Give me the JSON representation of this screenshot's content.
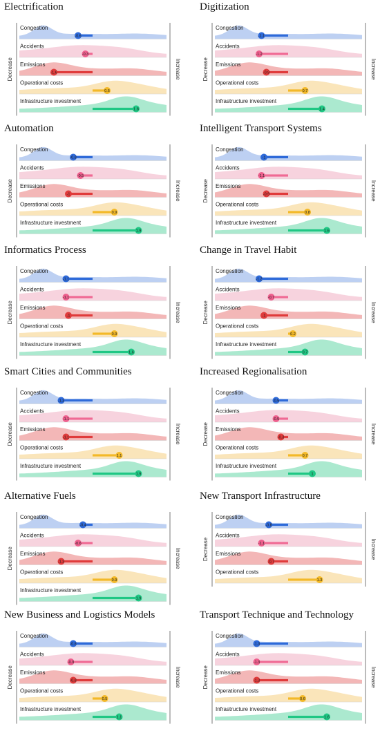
{
  "side_labels": {
    "left": "Decrease",
    "right": "Increase"
  },
  "colors": {
    "Congestion": {
      "fill": "#b9cdf1",
      "bar": "#2e6ad9",
      "dot": "#2e6ad9"
    },
    "Accidents": {
      "fill": "#f7d1dc",
      "bar": "#f06a94",
      "dot": "#ee5f8d"
    },
    "Emissions": {
      "fill": "#f2b3b3",
      "bar": "#e03b3b",
      "dot": "#e03b3b"
    },
    "Operational costs": {
      "fill": "#fae4b6",
      "bar": "#f3b928",
      "dot": "#f3b928"
    },
    "Infrastructure investment": {
      "fill": "#a7e8cc",
      "bar": "#1fc784",
      "dot": "#1fc784"
    }
  },
  "chart_data": [
    {
      "type": "ridgeline",
      "title": "Electrification",
      "series": [
        {
          "name": "Congestion",
          "value": -0.6
        },
        {
          "name": "Accidents",
          "value": -0.3
        },
        {
          "name": "Emissions",
          "value": -1.6
        },
        {
          "name": "Operational costs",
          "value": 0.6
        },
        {
          "name": "Infrastructure investment",
          "value": 1.8
        }
      ]
    },
    {
      "type": "ridgeline",
      "title": "Digitization",
      "series": [
        {
          "name": "Congestion",
          "value": -1.1
        },
        {
          "name": "Accidents",
          "value": -1.2
        },
        {
          "name": "Emissions",
          "value": -0.9
        },
        {
          "name": "Operational costs",
          "value": 0.7
        },
        {
          "name": "Infrastructure investment",
          "value": 1.4
        }
      ]
    },
    {
      "type": "ridgeline",
      "title": "Automation",
      "series": [
        {
          "name": "Congestion",
          "value": -0.8
        },
        {
          "name": "Accidents",
          "value": -0.5
        },
        {
          "name": "Emissions",
          "value": -1
        },
        {
          "name": "Operational costs",
          "value": 0.9
        },
        {
          "name": "Infrastructure investment",
          "value": 1.9
        }
      ]
    },
    {
      "type": "ridgeline",
      "title": "Intelligent Transport Systems",
      "series": [
        {
          "name": "Congestion",
          "value": -1
        },
        {
          "name": "Accidents",
          "value": -1.1
        },
        {
          "name": "Emissions",
          "value": -0.9
        },
        {
          "name": "Operational costs",
          "value": 0.8
        },
        {
          "name": "Infrastructure investment",
          "value": 1.6
        }
      ]
    },
    {
      "type": "ridgeline",
      "title": "Informatics Process",
      "series": [
        {
          "name": "Congestion",
          "value": -1.1
        },
        {
          "name": "Accidents",
          "value": -1.1
        },
        {
          "name": "Emissions",
          "value": -1
        },
        {
          "name": "Operational costs",
          "value": 0.9
        },
        {
          "name": "Infrastructure investment",
          "value": 1.6
        }
      ]
    },
    {
      "type": "ridgeline",
      "title": "Change in Travel Habit",
      "series": [
        {
          "name": "Congestion",
          "value": -1.2
        },
        {
          "name": "Accidents",
          "value": -0.7
        },
        {
          "name": "Emissions",
          "value": -1
        },
        {
          "name": "Operational costs",
          "value": 0.2
        },
        {
          "name": "Infrastructure investment",
          "value": 0.7
        }
      ]
    },
    {
      "type": "ridgeline",
      "title": "Smart Cities and Communities",
      "series": [
        {
          "name": "Congestion",
          "value": -1.3
        },
        {
          "name": "Accidents",
          "value": -1.1
        },
        {
          "name": "Emissions",
          "value": -1.1
        },
        {
          "name": "Operational costs",
          "value": 1.1
        },
        {
          "name": "Infrastructure investment",
          "value": 1.9
        }
      ]
    },
    {
      "type": "ridgeline",
      "title": "Increased Regionalisation",
      "series": [
        {
          "name": "Congestion",
          "value": -0.5
        },
        {
          "name": "Accidents",
          "value": -0.5
        },
        {
          "name": "Emissions",
          "value": -0.3
        },
        {
          "name": "Operational costs",
          "value": 0.7
        },
        {
          "name": "Infrastructure investment",
          "value": 1
        }
      ]
    },
    {
      "type": "ridgeline",
      "title": "Alternative Fuels",
      "series": [
        {
          "name": "Congestion",
          "value": -0.4
        },
        {
          "name": "Accidents",
          "value": -0.6
        },
        {
          "name": "Emissions",
          "value": -1.3
        },
        {
          "name": "Operational costs",
          "value": 0.9
        },
        {
          "name": "Infrastructure investment",
          "value": 1.9
        }
      ]
    },
    {
      "type": "ridgeline",
      "title": "New Transport Infrastructure",
      "series": [
        {
          "name": "Congestion",
          "value": -0.8
        },
        {
          "name": "Accidents",
          "value": -1.1
        },
        {
          "name": "Emissions",
          "value": -0.7
        },
        {
          "name": "Operational costs",
          "value": 1.3
        }
      ]
    },
    {
      "type": "ridgeline",
      "title": "New Business and Logistics Models",
      "series": [
        {
          "name": "Congestion",
          "value": -0.8
        },
        {
          "name": "Accidents",
          "value": -0.9
        },
        {
          "name": "Emissions",
          "value": -0.8
        },
        {
          "name": "Operational costs",
          "value": 0.5
        },
        {
          "name": "Infrastructure investment",
          "value": 1.1
        }
      ]
    },
    {
      "type": "ridgeline",
      "title": "Transport Technique and Technology",
      "series": [
        {
          "name": "Congestion",
          "value": -1.3
        },
        {
          "name": "Accidents",
          "value": -1.3
        },
        {
          "name": "Emissions",
          "value": -1.3
        },
        {
          "name": "Operational costs",
          "value": 0.6
        },
        {
          "name": "Infrastructure investment",
          "value": 1.6
        }
      ]
    }
  ]
}
